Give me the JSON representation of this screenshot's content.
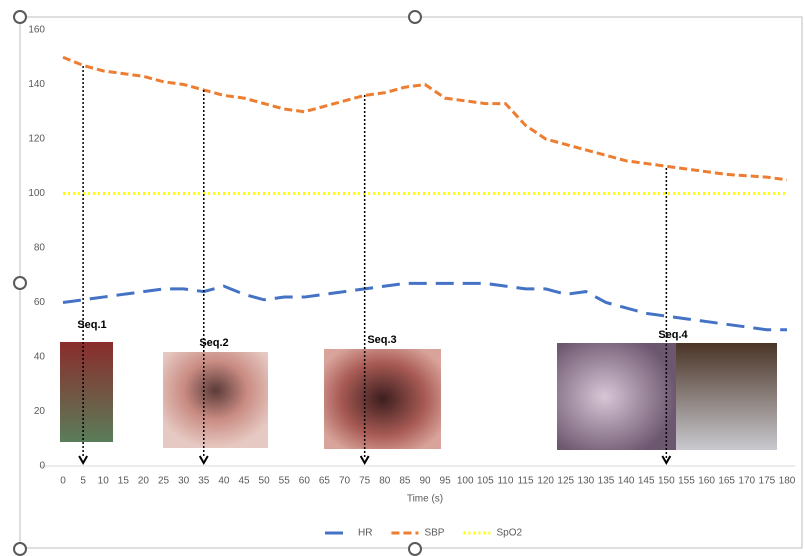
{
  "chart_data": {
    "type": "line",
    "x_label": "Time (s)",
    "x": [
      0,
      5,
      10,
      15,
      20,
      25,
      30,
      35,
      40,
      45,
      50,
      55,
      60,
      65,
      70,
      75,
      80,
      85,
      90,
      95,
      100,
      105,
      110,
      115,
      120,
      125,
      130,
      135,
      140,
      145,
      150,
      155,
      160,
      165,
      170,
      175,
      180
    ],
    "series": [
      {
        "name": "HR",
        "color": "#4472c4",
        "dash": "18 9",
        "values": [
          60,
          61,
          62,
          63,
          64,
          65,
          65,
          64,
          66,
          63,
          61,
          62,
          62,
          63,
          64,
          65,
          66,
          67,
          67,
          67,
          67,
          67,
          66,
          65,
          65,
          63,
          64,
          60,
          58,
          56,
          55,
          54,
          53,
          52,
          51,
          50,
          50
        ]
      },
      {
        "name": "SBP",
        "color": "#ed7d31",
        "dash": "8 4",
        "values": [
          150,
          147,
          145,
          144,
          143,
          141,
          140,
          138,
          136,
          135,
          133,
          131,
          130,
          132,
          134,
          136,
          137,
          139,
          140,
          135,
          134,
          133,
          133,
          125,
          120,
          118,
          116,
          114,
          112,
          111,
          110,
          109,
          108,
          107,
          106.5,
          106,
          105
        ]
      },
      {
        "name": "SpO2",
        "color": "#ffff00",
        "dash": "2 3",
        "values": [
          100,
          100,
          100,
          100,
          100,
          100,
          100,
          100,
          100,
          100,
          100,
          100,
          100,
          100,
          100,
          100,
          100,
          100,
          100,
          100,
          100,
          100,
          100,
          100,
          100,
          100,
          100,
          100,
          100,
          100,
          100,
          100,
          100,
          100,
          100,
          100,
          100
        ]
      }
    ],
    "annotations": [
      {
        "label": "Seq.1",
        "x": 5
      },
      {
        "label": "Seq.2",
        "x": 35
      },
      {
        "label": "Seq.3",
        "x": 75
      },
      {
        "label": "Seq.4",
        "x": 150
      }
    ],
    "xlim": [
      0,
      180
    ],
    "xticks": [
      0,
      5,
      10,
      15,
      20,
      25,
      30,
      35,
      40,
      45,
      50,
      55,
      60,
      65,
      70,
      75,
      80,
      85,
      90,
      95,
      100,
      105,
      110,
      115,
      120,
      125,
      130,
      135,
      140,
      145,
      150,
      155,
      160,
      165,
      170,
      175,
      180
    ],
    "ylim": [
      0,
      160
    ],
    "yticks": [
      0,
      20,
      40,
      60,
      80,
      100,
      120,
      140,
      160
    ],
    "grid": false,
    "legend": "bottom"
  }
}
